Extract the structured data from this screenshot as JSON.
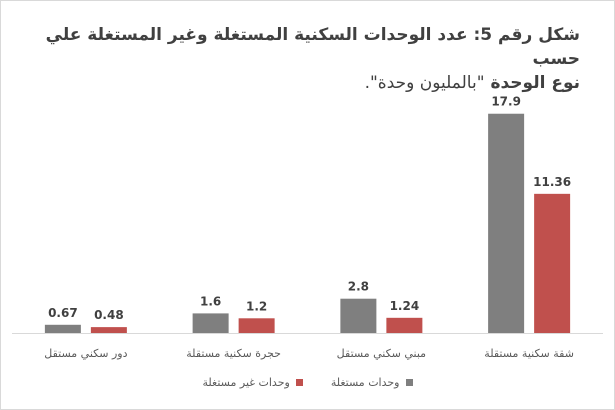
{
  "title_part1": "شكل رقم 5: عدد الوحدات السكنية المستغلة وغير المستغلة علي حسب",
  "title_part2_bold": "نوع الوحدة ",
  "title_part2_normal": "\"بالمليون وحدة\".",
  "colors": {
    "occupied": "#7f7f7f",
    "vacant": "#c0504d",
    "axis": "#d9d9d9",
    "text": "#595959",
    "value": "#404040"
  },
  "chart_data": {
    "type": "bar",
    "categories": [
      "دور سكني مستقل",
      "حجرة سكنية مستقلة",
      "مبني سكني مستقل",
      "شقة سكنية مستقلة"
    ],
    "series": [
      {
        "name": "وحدات مستغلة",
        "values": [
          0.67,
          1.6,
          2.8,
          17.9
        ],
        "labels": [
          "0.67",
          "1.6",
          "2.8",
          "17.9"
        ]
      },
      {
        "name": "وحدات غير مستغلة",
        "values": [
          0.48,
          1.2,
          1.24,
          11.36
        ],
        "labels": [
          "0.48",
          "1.2",
          "1.24",
          "11.36"
        ]
      }
    ],
    "ylim": [
      0,
      20
    ],
    "grid": false,
    "legend": "bottom"
  }
}
